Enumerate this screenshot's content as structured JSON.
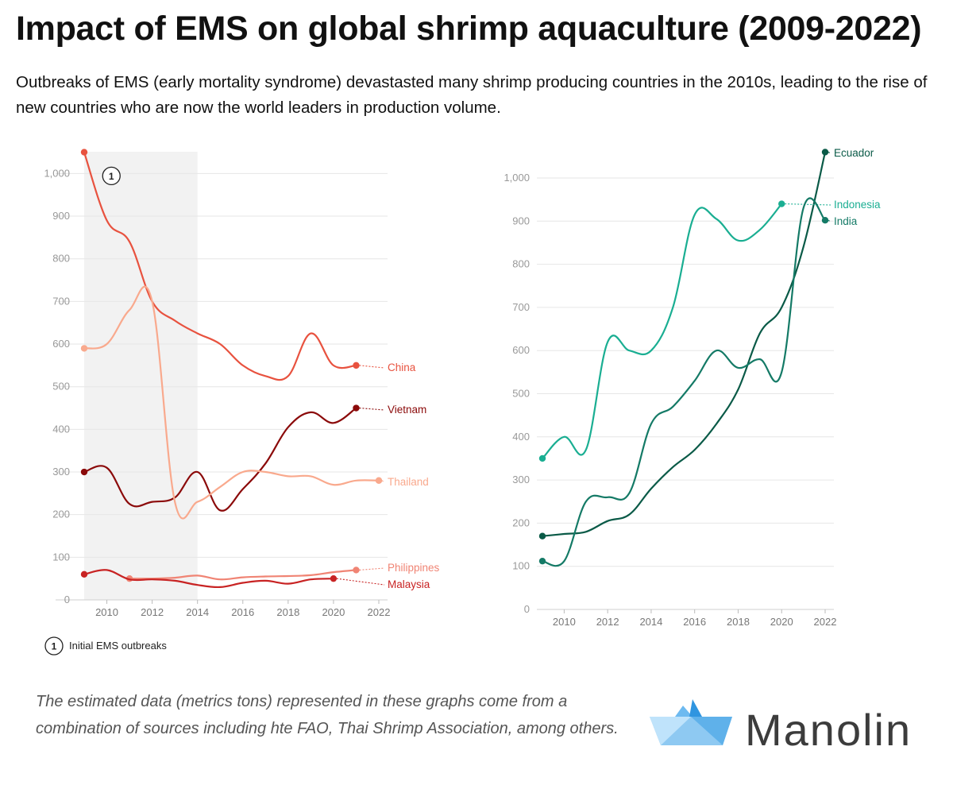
{
  "header": {
    "title": "Impact of EMS on global shrimp aquaculture (2009-2022)",
    "subtitle": "Outbreaks of EMS (early mortality syndrome) devastasted many shrimp producing countries in the 2010s, leading to the rise of new countries who are now the world leaders in production volume."
  },
  "chart_data": [
    {
      "type": "line",
      "title": "",
      "xlabel": "",
      "ylabel": "",
      "xlim": [
        2009,
        2022
      ],
      "ylim": [
        0,
        1050
      ],
      "x_ticks": [
        "2010",
        "2012",
        "2014",
        "2016",
        "2018",
        "2020",
        "2022"
      ],
      "y_ticks": [
        "0",
        "100",
        "200",
        "300",
        "400",
        "500",
        "600",
        "700",
        "800",
        "900",
        "1,000"
      ],
      "shaded_range": [
        2009,
        2014
      ],
      "annotation": {
        "marker": "1",
        "text": "Initial EMS outbreaks"
      },
      "series": [
        {
          "name": "China",
          "color": "#e8523f",
          "x": [
            2009,
            2010,
            2011,
            2012,
            2013,
            2014,
            2015,
            2016,
            2017,
            2018,
            2019,
            2020,
            2021
          ],
          "y": [
            1050,
            890,
            840,
            700,
            655,
            625,
            600,
            550,
            525,
            525,
            625,
            550,
            550
          ]
        },
        {
          "name": "Vietnam",
          "color": "#8b0a0a",
          "x": [
            2009,
            2010,
            2011,
            2012,
            2013,
            2014,
            2015,
            2016,
            2017,
            2018,
            2019,
            2020,
            2021
          ],
          "y": [
            300,
            310,
            225,
            230,
            240,
            300,
            210,
            260,
            320,
            405,
            440,
            415,
            450
          ]
        },
        {
          "name": "Thailand",
          "color": "#f9a98d",
          "x": [
            2009,
            2010,
            2011,
            2012,
            2013,
            2014,
            2015,
            2016,
            2017,
            2018,
            2019,
            2020,
            2021,
            2022
          ],
          "y": [
            590,
            600,
            680,
            700,
            230,
            230,
            265,
            300,
            300,
            290,
            290,
            270,
            280,
            280
          ]
        },
        {
          "name": "Philippines",
          "color": "#f08474",
          "x": [
            2011,
            2012,
            2013,
            2014,
            2015,
            2016,
            2017,
            2018,
            2019,
            2020,
            2021
          ],
          "y": [
            50,
            50,
            52,
            57,
            48,
            53,
            55,
            56,
            58,
            65,
            70
          ]
        },
        {
          "name": "Malaysia",
          "color": "#c82323",
          "x": [
            2009,
            2010,
            2011,
            2012,
            2013,
            2014,
            2015,
            2016,
            2017,
            2018,
            2019,
            2020
          ],
          "y": [
            60,
            70,
            48,
            48,
            45,
            35,
            30,
            40,
            45,
            38,
            48,
            50
          ]
        }
      ]
    },
    {
      "type": "line",
      "title": "",
      "xlabel": "",
      "ylabel": "",
      "xlim": [
        2009,
        2022
      ],
      "ylim": [
        0,
        1060
      ],
      "x_ticks": [
        "2010",
        "2012",
        "2014",
        "2016",
        "2018",
        "2020",
        "2022"
      ],
      "y_ticks": [
        "0",
        "100",
        "200",
        "300",
        "400",
        "500",
        "600",
        "700",
        "800",
        "900",
        "1,000"
      ],
      "series": [
        {
          "name": "Ecuador",
          "color": "#0a5a47",
          "x": [
            2009,
            2010,
            2011,
            2012,
            2013,
            2014,
            2015,
            2016,
            2017,
            2018,
            2019,
            2020,
            2021,
            2022
          ],
          "y": [
            170,
            175,
            180,
            205,
            220,
            280,
            330,
            370,
            430,
            510,
            640,
            700,
            840,
            1060
          ]
        },
        {
          "name": "Indonesia",
          "color": "#1aae92",
          "x": [
            2009,
            2010,
            2011,
            2012,
            2013,
            2014,
            2015,
            2016,
            2017,
            2018,
            2019,
            2020
          ],
          "y": [
            350,
            400,
            370,
            620,
            600,
            600,
            700,
            915,
            905,
            855,
            880,
            940
          ]
        },
        {
          "name": "India",
          "color": "#147a66",
          "x": [
            2009,
            2010,
            2011,
            2012,
            2013,
            2014,
            2015,
            2016,
            2017,
            2018,
            2019,
            2020,
            2021,
            2022
          ],
          "y": [
            112,
            112,
            250,
            260,
            270,
            430,
            470,
            530,
            600,
            560,
            580,
            550,
            930,
            902
          ]
        }
      ]
    }
  ],
  "legend_note": {
    "marker": "1",
    "text": "Initial EMS outbreaks"
  },
  "footer": {
    "source_note": "The estimated data (metrics tons) represented in these graphs come from a combination of sources including hte FAO, Thai Shrimp Association, among others.",
    "brand": "Manolin"
  }
}
